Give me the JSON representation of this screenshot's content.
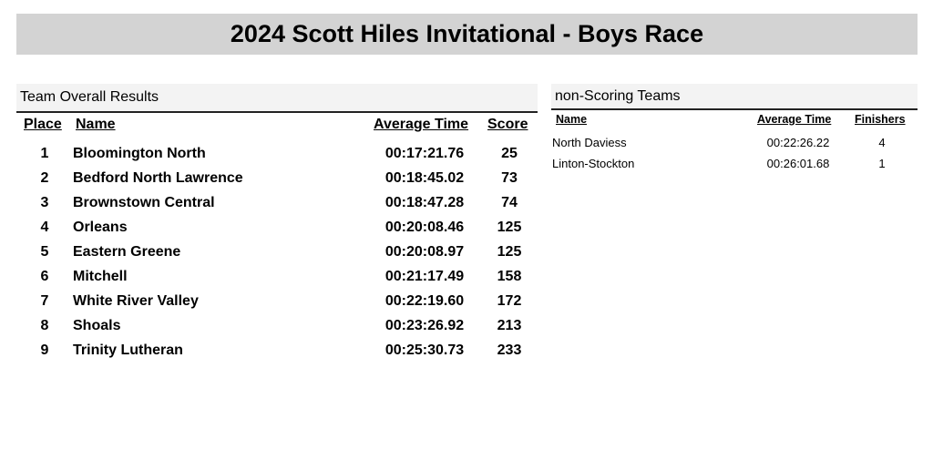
{
  "title": "2024 Scott Hiles Invitational - Boys Race",
  "team_results": {
    "heading": "Team Overall Results",
    "columns": {
      "place": "Place",
      "name": "Name",
      "avg_time": "Average Time",
      "score": "Score"
    },
    "rows": [
      {
        "place": "1",
        "name": "Bloomington North",
        "avg_time": "00:17:21.76",
        "score": "25"
      },
      {
        "place": "2",
        "name": "Bedford North Lawrence",
        "avg_time": "00:18:45.02",
        "score": "73"
      },
      {
        "place": "3",
        "name": "Brownstown Central",
        "avg_time": "00:18:47.28",
        "score": "74"
      },
      {
        "place": "4",
        "name": "Orleans",
        "avg_time": "00:20:08.46",
        "score": "125"
      },
      {
        "place": "5",
        "name": "Eastern Greene",
        "avg_time": "00:20:08.97",
        "score": "125"
      },
      {
        "place": "6",
        "name": "Mitchell",
        "avg_time": "00:21:17.49",
        "score": "158"
      },
      {
        "place": "7",
        "name": "White River Valley",
        "avg_time": "00:22:19.60",
        "score": "172"
      },
      {
        "place": "8",
        "name": "Shoals",
        "avg_time": "00:23:26.92",
        "score": "213"
      },
      {
        "place": "9",
        "name": "Trinity Lutheran",
        "avg_time": "00:25:30.73",
        "score": "233"
      }
    ]
  },
  "non_scoring": {
    "heading": "non-Scoring Teams",
    "columns": {
      "name": "Name",
      "avg_time": "Average Time",
      "finishers": "Finishers"
    },
    "rows": [
      {
        "name": "North Daviess",
        "avg_time": "00:22:26.22",
        "finishers": "4"
      },
      {
        "name": "Linton-Stockton",
        "avg_time": "00:26:01.68",
        "finishers": "1"
      }
    ]
  }
}
